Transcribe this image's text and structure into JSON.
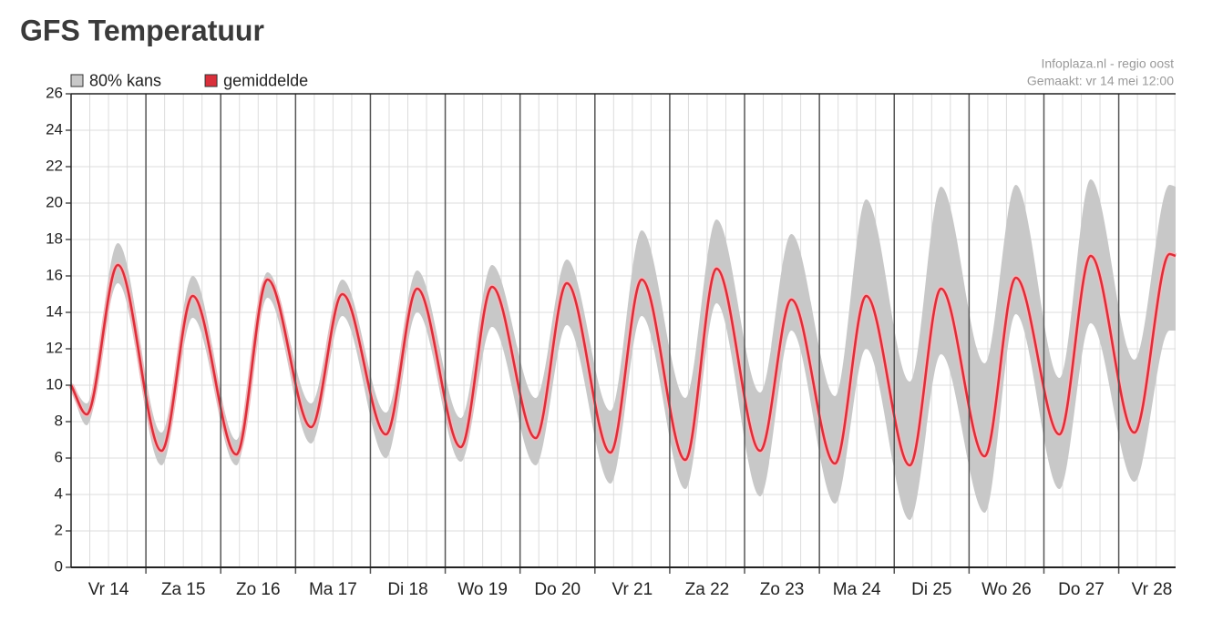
{
  "chart_data": {
    "type": "line",
    "title": "GFS Temperatuur",
    "source": "Infoplaza.nl - regio oost",
    "made": "Gemaakt: vr 14 mei 12:00",
    "x": [
      0,
      0.208,
      0.625,
      1.208,
      1.625,
      2.208,
      2.625,
      3.208,
      3.625,
      4.208,
      4.625,
      5.208,
      5.625,
      6.208,
      6.625,
      7.208,
      7.625,
      8.208,
      8.625,
      9.208,
      9.625,
      10.208,
      10.625,
      11.208,
      11.625,
      12.208,
      12.625,
      13.208,
      13.625,
      14.208,
      14.68,
      14.76
    ],
    "xlim": [
      0,
      14.76
    ],
    "xticks": [
      {
        "value": 0.5,
        "label": "Vr 14"
      },
      {
        "value": 1.5,
        "label": "Za 15"
      },
      {
        "value": 2.5,
        "label": "Zo 16"
      },
      {
        "value": 3.5,
        "label": "Ma 17"
      },
      {
        "value": 4.5,
        "label": "Di 18"
      },
      {
        "value": 5.5,
        "label": "Wo 19"
      },
      {
        "value": 6.5,
        "label": "Do 20"
      },
      {
        "value": 7.5,
        "label": "Vr 21"
      },
      {
        "value": 8.5,
        "label": "Za 22"
      },
      {
        "value": 9.5,
        "label": "Zo 23"
      },
      {
        "value": 10.5,
        "label": "Ma 24"
      },
      {
        "value": 11.5,
        "label": "Di 25"
      },
      {
        "value": 12.5,
        "label": "Wo 26"
      },
      {
        "value": 13.5,
        "label": "Do 27"
      },
      {
        "value": 14.5,
        "label": "Vr 28"
      }
    ],
    "xgrid": [
      1,
      2,
      3,
      4,
      5,
      6,
      7,
      8,
      9,
      10,
      11,
      12,
      13,
      14
    ],
    "xgrid_minor_step": 0.25,
    "ylim": [
      0,
      26
    ],
    "yticks": [
      0,
      2,
      4,
      6,
      8,
      10,
      12,
      14,
      16,
      18,
      20,
      22,
      24,
      26
    ],
    "grid": true,
    "series": [
      {
        "name": "80% kans",
        "color": "#c8c8c8",
        "low": [
          9.8,
          7.8,
          15.6,
          5.6,
          13.7,
          5.6,
          14.8,
          6.8,
          13.8,
          6.0,
          14.0,
          5.8,
          13.2,
          5.6,
          13.3,
          4.6,
          13.8,
          4.3,
          14.5,
          3.9,
          13.0,
          3.5,
          12.0,
          2.6,
          11.7,
          3.0,
          13.9,
          4.3,
          13.4,
          4.7,
          13.0,
          13.0
        ],
        "high": [
          10.2,
          9.0,
          17.8,
          7.4,
          16.0,
          7.0,
          16.2,
          9.0,
          15.8,
          8.5,
          16.3,
          8.2,
          16.6,
          9.3,
          16.9,
          8.6,
          18.5,
          9.3,
          19.1,
          9.6,
          18.3,
          9.4,
          20.2,
          10.2,
          20.9,
          11.2,
          21.0,
          10.4,
          21.3,
          11.4,
          21.0,
          20.9
        ]
      },
      {
        "name": "gemiddelde",
        "color": "#d9303b",
        "values": [
          10.0,
          8.4,
          16.6,
          6.4,
          14.9,
          6.2,
          15.8,
          7.7,
          15.0,
          7.3,
          15.3,
          6.6,
          15.4,
          7.1,
          15.6,
          6.3,
          15.8,
          5.9,
          16.4,
          6.4,
          14.7,
          5.7,
          14.9,
          5.6,
          15.3,
          6.1,
          15.9,
          7.3,
          17.1,
          7.4,
          17.2,
          17.1
        ]
      }
    ]
  }
}
